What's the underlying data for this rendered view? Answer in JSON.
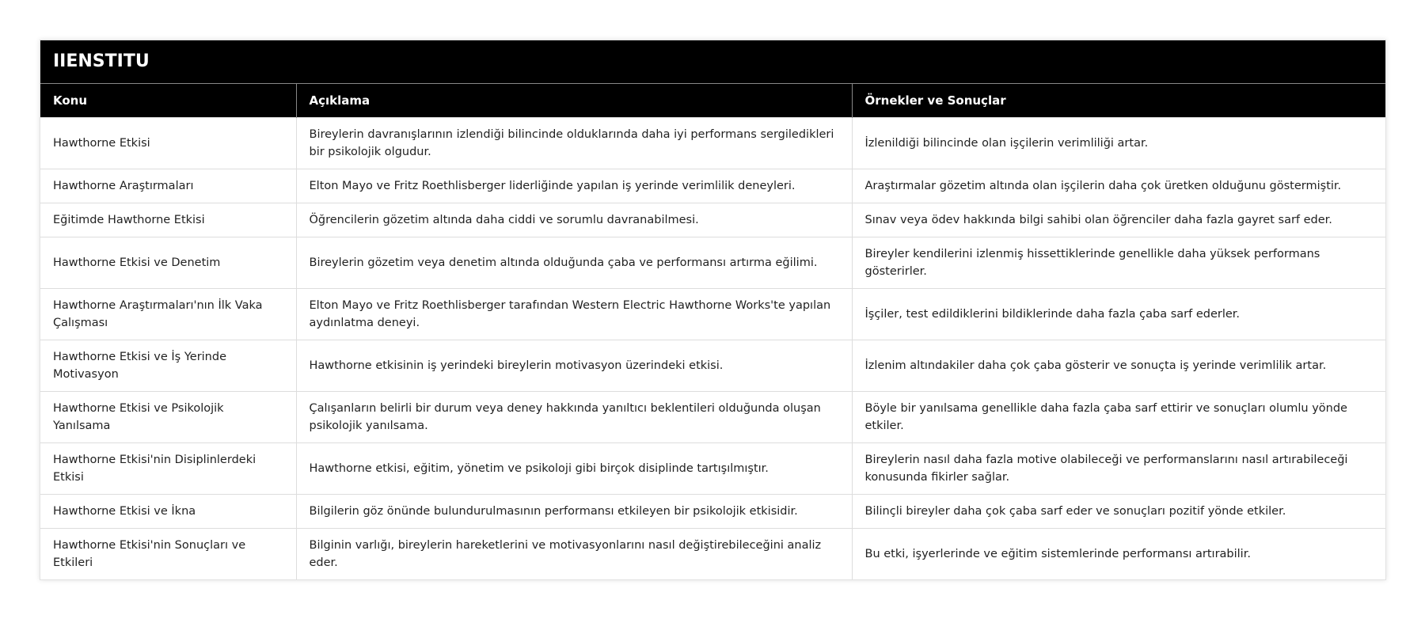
{
  "title": "IIENSTITU",
  "columns": [
    "Konu",
    "Açıklama",
    "Örnekler ve Sonuçlar"
  ],
  "rows": [
    [
      "Hawthorne Etkisi",
      "Bireylerin davranışlarının izlendiği bilincinde olduklarında daha iyi performans sergiledikleri bir psikolojik olgudur.",
      "İzlenildiği bilincinde olan işçilerin verimliliği artar."
    ],
    [
      "Hawthorne Araştırmaları",
      "Elton Mayo ve Fritz Roethlisberger liderliğinde yapılan iş yerinde verimlilik deneyleri.",
      "Araştırmalar gözetim altında olan işçilerin daha çok üretken olduğunu göstermiştir."
    ],
    [
      "Eğitimde Hawthorne Etkisi",
      "Öğrencilerin gözetim altında daha ciddi ve sorumlu davranabilmesi.",
      "Sınav veya ödev hakkında bilgi sahibi olan öğrenciler daha fazla gayret sarf eder."
    ],
    [
      "Hawthorne Etkisi ve Denetim",
      "Bireylerin gözetim veya denetim altında olduğunda çaba ve performansı artırma eğilimi.",
      "Bireyler kendilerini izlenmiş hissettiklerinde genellikle daha yüksek performans gösterirler."
    ],
    [
      "Hawthorne Araştırmaları'nın İlk Vaka Çalışması",
      "Elton Mayo ve Fritz Roethlisberger tarafından Western Electric Hawthorne Works'te yapılan aydınlatma deneyi.",
      "İşçiler, test edildiklerini bildiklerinde daha fazla çaba sarf ederler."
    ],
    [
      "Hawthorne Etkisi ve İş Yerinde Motivasyon",
      "Hawthorne etkisinin iş yerindeki bireylerin motivasyon üzerindeki etkisi.",
      "İzlenim altındakiler daha çok çaba gösterir ve sonuçta iş yerinde verimlilik artar."
    ],
    [
      "Hawthorne Etkisi ve Psikolojik Yanılsama",
      "Çalışanların belirli bir durum veya deney hakkında yanıltıcı beklentileri olduğunda oluşan psikolojik yanılsama.",
      "Böyle bir yanılsama genellikle daha fazla çaba sarf ettirir ve sonuçları olumlu yönde etkiler."
    ],
    [
      "Hawthorne Etkisi'nin Disiplinlerdeki Etkisi",
      "Hawthorne etkisi, eğitim, yönetim ve psikoloji gibi birçok disiplinde tartışılmıştır.",
      "Bireylerin nasıl daha fazla motive olabileceği ve performanslarını nasıl artırabileceği konusunda fikirler sağlar."
    ],
    [
      "Hawthorne Etkisi ve İkna",
      "Bilgilerin göz önünde bulundurulmasının performansı etkileyen bir psikolojik etkisidir.",
      "Bilinçli bireyler daha çok çaba sarf eder ve sonuçları pozitif yönde etkiler."
    ],
    [
      "Hawthorne Etkisi'nin Sonuçları ve Etkileri",
      "Bilginin varlığı, bireylerin hareketlerini ve motivasyonlarını nasıl değiştirebileceğini analiz eder.",
      "Bu etki, işyerlerinde ve eğitim sistemlerinde performansı artırabilir."
    ]
  ]
}
